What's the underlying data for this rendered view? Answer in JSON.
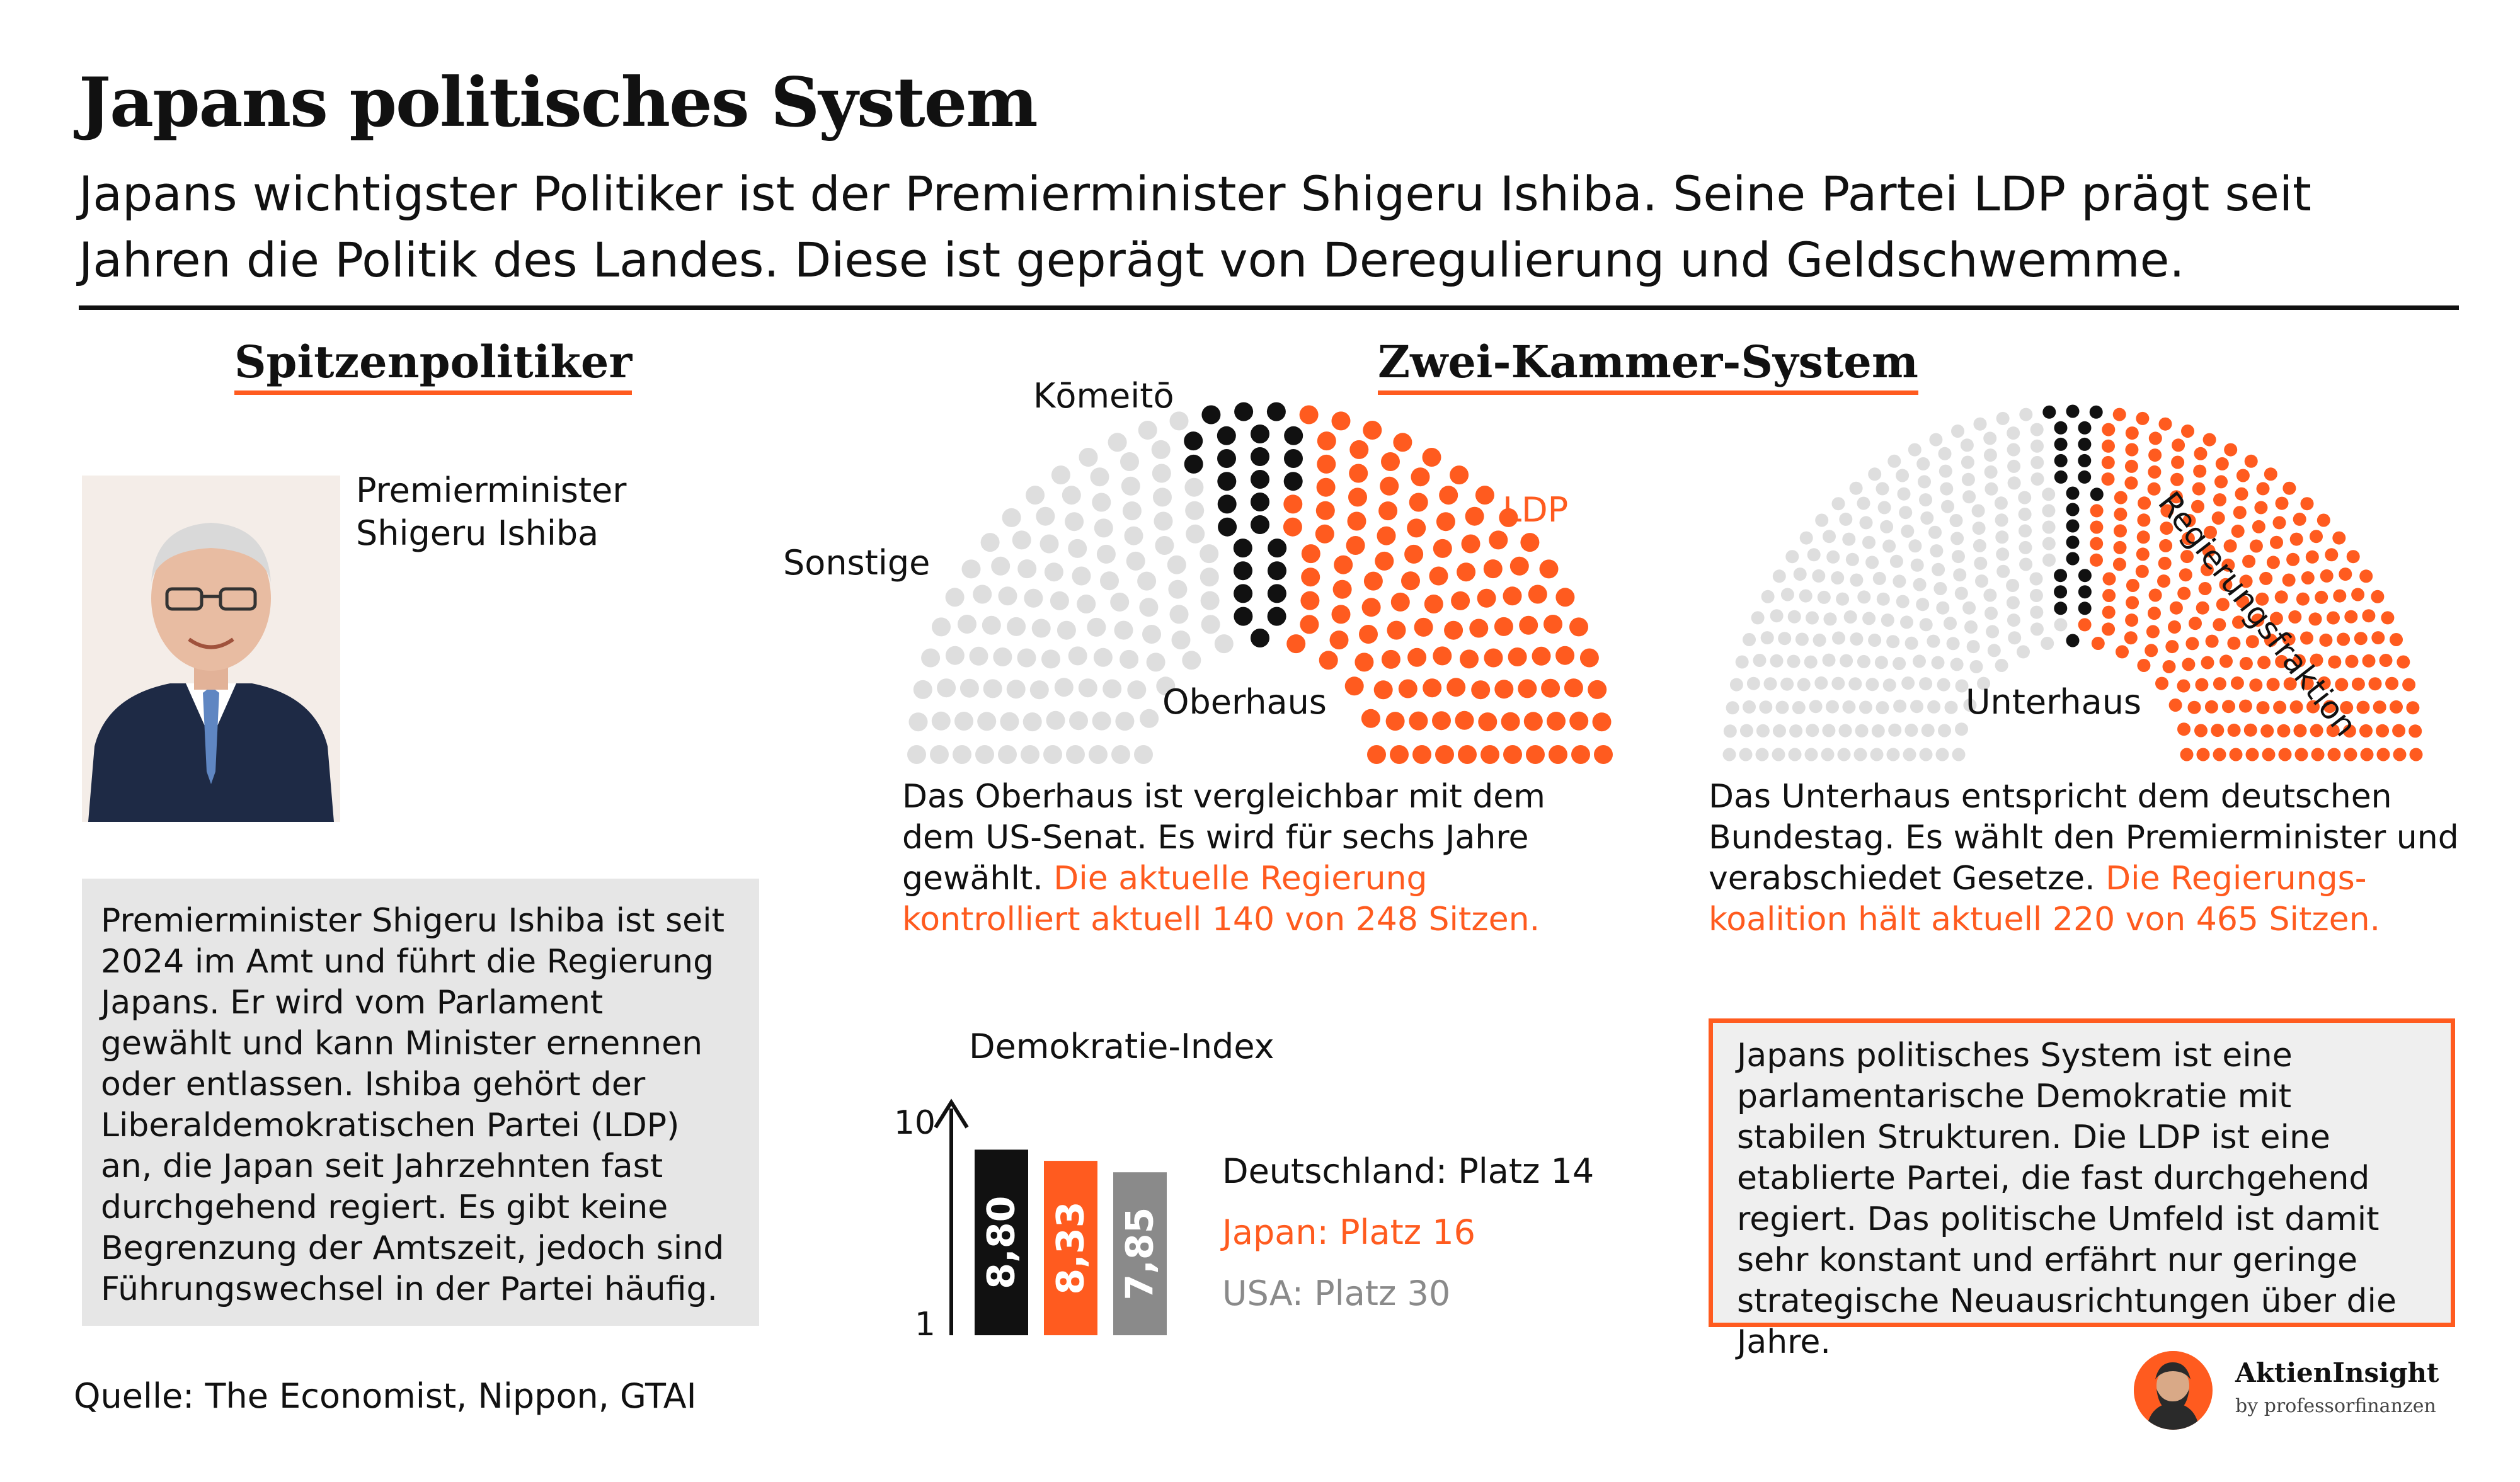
{
  "header": {
    "title": "Japans politisches System",
    "subtitle": "Japans wichtigster Politiker ist der Premierminister Shigeru Ishiba. Seine Partei LDP prägt seit Jahren die Politik des Landes. Diese ist geprägt von Deregulierung und Geldschwemme."
  },
  "left": {
    "heading": "Spitzenpolitiker",
    "pm_label": "Premierminister\nShigeru Ishiba",
    "description": "Premierminister Shigeru Ishiba ist seit 2024 im Amt und führt die Regierung Japans. Er wird vom Parlament gewählt und kann Minister ernennen oder entlassen. Ishiba gehört der Liberaldemokratischen Partei (LDP) an, die Japan seit Jahrzehnten fast durchgehend regiert. Es gibt keine Begrenzung der Amtszeit, jedoch sind Führungswechsel in der Partei häufig."
  },
  "middle": {
    "heading": "Zwei-Kammer-System",
    "labels": {
      "komeito": "Kōmeitō",
      "ldp": "LDP",
      "sonstige": "Sonstige",
      "oberhaus": "Oberhaus",
      "unterhaus": "Unterhaus",
      "regierungsfraktion": "Regierungsfraktion"
    },
    "oberhaus_text": "Das Oberhaus ist vergleichbar mit dem dem US-Senat. Es wird für sechs Jahre gewählt.",
    "oberhaus_highlight": "Die aktuelle Regierung kontrolliert aktuell 140 von 248 Sitzen.",
    "unterhaus_text": "Das Unterhaus entspricht dem deutschen Bundestag. Es wählt den Premierminister und verabschiedet Gesetze.",
    "unterhaus_highlight": "Die Regierungs-koalition hält aktuell 220 von 465 Sitzen."
  },
  "summary": "Japans politisches System ist eine parlamentarische Demokratie mit stabilen Strukturen. Die LDP ist eine etablierte Partei, die fast durchgehend regiert. Das politische Umfeld ist damit sehr konstant und erfährt nur geringe strategische Neuausrichtungen über die Jahre.",
  "footer": {
    "source": "Quelle: The Economist, Nippon, GTAI",
    "brand_name": "AktienInsight",
    "brand_by": "by professorfinanzen"
  },
  "colors": {
    "accent": "#ff5b1f",
    "black": "#111111",
    "grey_light": "#dedede",
    "grey_dark": "#8a8a8a"
  },
  "chart_data": [
    {
      "type": "parliament",
      "title": "Oberhaus",
      "total_seats": 248,
      "series": [
        {
          "name": "LDP",
          "seats": 113,
          "color": "#ff5b1f"
        },
        {
          "name": "Kōmeitō",
          "seats": 27,
          "color": "#111111"
        },
        {
          "name": "Sonstige",
          "seats": 108,
          "color": "#dedede"
        }
      ]
    },
    {
      "type": "parliament",
      "title": "Unterhaus",
      "total_seats": 465,
      "series": [
        {
          "name": "Regierungsfraktion",
          "seats": 220,
          "color": "#ff5b1f"
        },
        {
          "name": "Kōmeitō",
          "seats": 24,
          "color": "#111111"
        },
        {
          "name": "Sonstige",
          "seats": 221,
          "color": "#dedede"
        }
      ]
    },
    {
      "type": "bar",
      "title": "Demokratie-Index",
      "categories": [
        "Deutschland",
        "Japan",
        "USA"
      ],
      "values": [
        8.8,
        8.33,
        7.85
      ],
      "value_labels": [
        "8,80",
        "8,33",
        "7,85"
      ],
      "ylim": [
        1,
        10
      ],
      "yticks": [
        "1",
        "10"
      ],
      "legend": [
        "Deutschland: Platz 14",
        "Japan: Platz 16",
        "USA: Platz 30"
      ]
    }
  ]
}
